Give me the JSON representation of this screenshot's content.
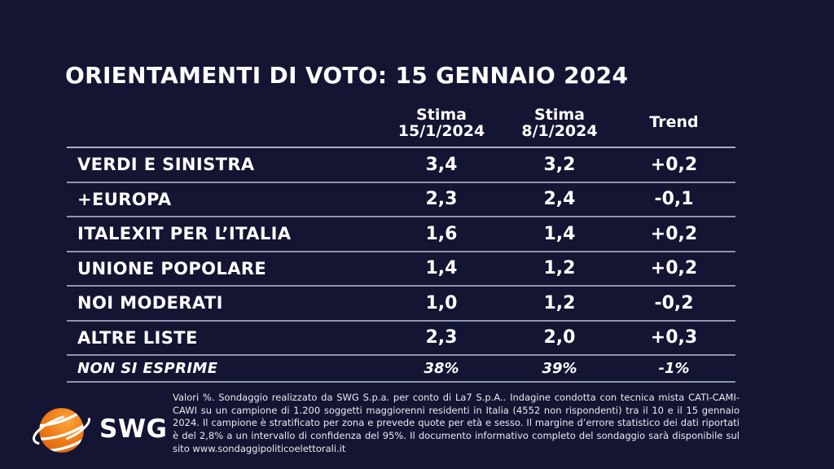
{
  "title": "ORIENTAMENTI DI VOTO: 15 GENNAIO 2024",
  "colors": {
    "background": "#131532",
    "text": "#ffffff",
    "divider": "#8f95ad",
    "logo_orange": "#f07e17"
  },
  "table": {
    "headers": [
      {
        "line1": "Stima",
        "line2": "15/1/2024"
      },
      {
        "line1": "Stima",
        "line2": "8/1/2024"
      },
      {
        "line1": "Trend",
        "line2": ""
      }
    ],
    "rows": [
      {
        "label": "VERDI E SINISTRA",
        "stima_current": "3,4",
        "stima_previous": "3,2",
        "trend": "+0,2"
      },
      {
        "label": "+EUROPA",
        "stima_current": "2,3",
        "stima_previous": "2,4",
        "trend": "-0,1"
      },
      {
        "label": "ITALEXIT PER L’ITALIA",
        "stima_current": "1,6",
        "stima_previous": "1,4",
        "trend": "+0,2"
      },
      {
        "label": "UNIONE POPOLARE",
        "stima_current": "1,4",
        "stima_previous": "1,2",
        "trend": "+0,2"
      },
      {
        "label": "NOI MODERATI",
        "stima_current": "1,0",
        "stima_previous": "1,2",
        "trend": "-0,2"
      },
      {
        "label": "ALTRE LISTE",
        "stima_current": "2,3",
        "stima_previous": "2,0",
        "trend": "+0,3"
      }
    ],
    "no_opinion_row": {
      "label": "NON SI ESPRIME",
      "stima_current": "38%",
      "stima_previous": "39%",
      "trend": "-1%"
    }
  },
  "footer": {
    "logo_text": "SWG",
    "disclaimer": "Valori %. Sondaggio realizzato da SWG S.p.a. per conto di La7 S.p.A.. Indagine condotta con tecnica mista CATI-CAMI-CAWI su un campione di 1.200 soggetti maggiorenni residenti in Italia (4552 non rispondenti) tra il 10 e il 15 gennaio 2024. Il campione è stratificato per zona e prevede quote per età e sesso. Il margine d’errore statistico dei dati riportati è del 2,8% a un intervallo di confidenza del 95%. Il documento informativo completo del sondaggio sarà disponibile sul sito www.sondaggipoliticoelettorali.it"
  },
  "chart_data": {
    "type": "table",
    "title": "ORIENTAMENTI DI VOTO: 15 GENNAIO 2024",
    "columns": [
      "",
      "Stima 15/1/2024",
      "Stima 8/1/2024",
      "Trend"
    ],
    "rows": [
      [
        "VERDI E SINISTRA",
        3.4,
        3.2,
        "+0,2"
      ],
      [
        "+EUROPA",
        2.3,
        2.4,
        "-0,1"
      ],
      [
        "ITALEXIT PER L’ITALIA",
        1.6,
        1.4,
        "+0,2"
      ],
      [
        "UNIONE POPOLARE",
        1.4,
        1.2,
        "+0,2"
      ],
      [
        "NOI MODERATI",
        1.0,
        1.2,
        "-0,2"
      ],
      [
        "ALTRE LISTE",
        2.3,
        2.0,
        "+0,3"
      ],
      [
        "NON SI ESPRIME",
        "38%",
        "39%",
        "-1%"
      ]
    ]
  }
}
